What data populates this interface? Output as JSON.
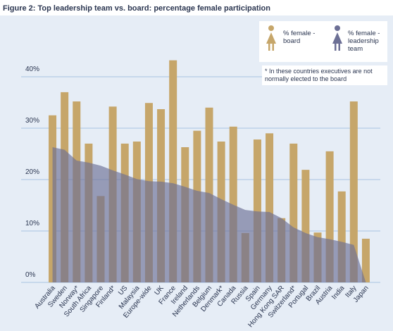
{
  "chart_data": {
    "type": "bar",
    "title": "Figure 2: Top leadership team vs. board: percentage female participation",
    "annotation": "* In these countries executives are not normally elected to the board",
    "categories": [
      "Australia",
      "Sweden",
      "Norway*",
      "South Africa",
      "Singapore",
      "Finland*",
      "US",
      "Malaysia",
      "Europe-wide",
      "UK",
      "France",
      "Ireland",
      "Netherlands",
      "Belgium",
      "Denmark*",
      "Canada",
      "Russia",
      "Spain",
      "Germany",
      "Hong Kong SAR",
      "Switzerland*",
      "Portugal",
      "Brazil",
      "Austria",
      "India",
      "Italy",
      "Japan"
    ],
    "series": [
      {
        "name": "% female - board",
        "color": "#c6a66a",
        "type": "bar",
        "values": [
          32.5,
          37,
          35.2,
          27,
          16.8,
          34.2,
          27,
          27.4,
          34.9,
          33.7,
          43.2,
          26.3,
          29.5,
          34,
          27.4,
          30.3,
          9.6,
          27.8,
          29,
          12.5,
          27,
          21.9,
          9.7,
          25.5,
          17.7,
          35.2,
          8.5
        ]
      },
      {
        "name": "% female - leadership team",
        "color": "#6c6f95",
        "type": "area",
        "values": [
          26.3,
          25.8,
          23.7,
          23.3,
          22.7,
          21.8,
          21,
          20.1,
          19.7,
          19.6,
          19.3,
          18.6,
          17.8,
          17.4,
          16.2,
          15.1,
          14.1,
          13.8,
          13.7,
          12.5,
          10.7,
          9.6,
          8.8,
          8.4,
          7.9,
          7.3,
          0
        ]
      }
    ],
    "ylim": [
      0,
      45
    ],
    "yticks": [
      {
        "value": 0,
        "label": "0%"
      },
      {
        "value": 10,
        "label": "10%"
      },
      {
        "value": 20,
        "label": "20%"
      },
      {
        "value": 30,
        "label": "30%"
      },
      {
        "value": 40,
        "label": "40%"
      }
    ],
    "grid": true
  }
}
